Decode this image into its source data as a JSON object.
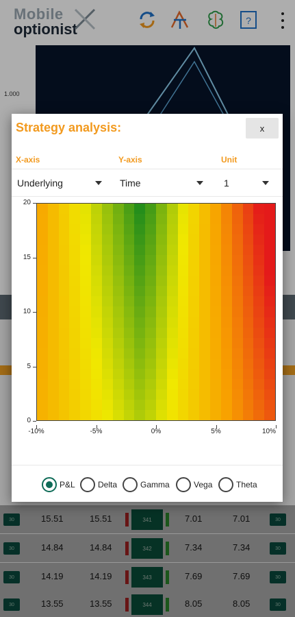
{
  "app": {
    "logo_top": "Mobile",
    "logo_bottom": "optionist",
    "icons": [
      "refresh-icon",
      "strategy-tool-icon",
      "brain-icon",
      "help-icon",
      "more-vert-icon"
    ]
  },
  "background_chart": {
    "y_tick": "1.000"
  },
  "rows": [
    {
      "c1": "15.51",
      "c2": "15.51",
      "strike": "341",
      "c3": "7.01",
      "c4": "7.01",
      "btn": "30"
    },
    {
      "c1": "14.84",
      "c2": "14.84",
      "strike": "342",
      "c3": "7.34",
      "c4": "7.34",
      "btn": "30"
    },
    {
      "c1": "14.19",
      "c2": "14.19",
      "strike": "343",
      "c3": "7.69",
      "c4": "7.69",
      "btn": "30"
    },
    {
      "c1": "13.55",
      "c2": "13.55",
      "strike": "344",
      "c3": "8.05",
      "c4": "8.05",
      "btn": "30"
    }
  ],
  "dialog": {
    "title": "Strategy analysis:",
    "close_label": "x",
    "x_axis": {
      "label": "X-axis",
      "value": "Underlying"
    },
    "y_axis": {
      "label": "Y-axis",
      "value": "Time"
    },
    "unit": {
      "label": "Unit",
      "value": "1"
    },
    "radio_options": [
      "P&L",
      "Delta",
      "Gamma",
      "Vega",
      "Theta"
    ],
    "radio_selected": "P&L"
  },
  "chart_data": {
    "type": "heatmap",
    "x_tick_labels": [
      "-10%",
      "-5%",
      "0%",
      "5%",
      "10%"
    ],
    "y_tick_labels": [
      "0",
      "5",
      "10",
      "15",
      "20"
    ],
    "x_range": [
      -10,
      10
    ],
    "y_range": [
      0,
      20
    ],
    "colors": {
      "low": "#f8a000",
      "mid": "#f0e800",
      "high": "#1c8a1c",
      "neg": "#e41a1a"
    }
  }
}
